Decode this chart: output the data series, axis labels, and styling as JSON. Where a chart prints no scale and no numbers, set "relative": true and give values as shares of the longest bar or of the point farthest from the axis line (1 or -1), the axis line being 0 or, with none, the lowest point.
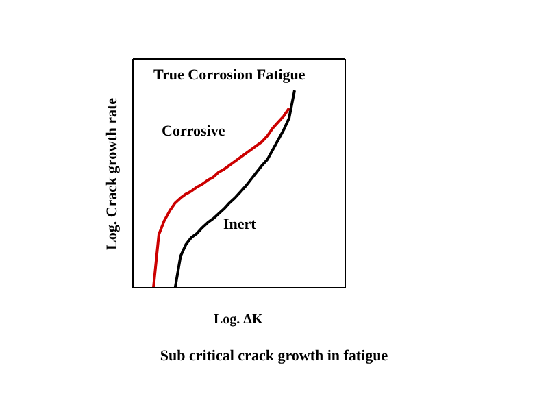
{
  "chart_data": {
    "type": "line",
    "relative": true,
    "xlabel": "Log. ΔK",
    "ylabel": "Log. Crack growth rate",
    "annotations": [
      "True Corrosion Fatigue",
      "Sub critical crack growth in fatigue"
    ],
    "grid": false,
    "legend": false,
    "marker": "none",
    "line_style": "solid",
    "categories": [
      null,
      null,
      null,
      null,
      null,
      null,
      null,
      null,
      null,
      null,
      null,
      null,
      null,
      null,
      null,
      null,
      null,
      null,
      null,
      null,
      null,
      null,
      null,
      null,
      null,
      null,
      null
    ],
    "series": [
      {
        "name": "Corrosive",
        "color": "#cc0000",
        "values": [
          0,
          0.27,
          0.34,
          0.39,
          0.43,
          0.455,
          0.475,
          0.49,
          0.51,
          0.525,
          0.545,
          0.56,
          0.585,
          0.6,
          0.62,
          0.64,
          0.66,
          0.68,
          0.7,
          0.72,
          0.74,
          0.77,
          0.81,
          0.84,
          0.87,
          0.91,
          null
        ]
      },
      {
        "name": "Inert",
        "color": "#000000",
        "values": [
          null,
          null,
          null,
          null,
          0,
          0.16,
          0.22,
          0.255,
          0.275,
          0.305,
          0.33,
          0.35,
          0.375,
          0.4,
          0.43,
          0.455,
          0.485,
          0.515,
          0.55,
          0.585,
          0.62,
          0.65,
          0.7,
          0.75,
          0.8,
          0.86,
          1
        ]
      }
    ]
  }
}
